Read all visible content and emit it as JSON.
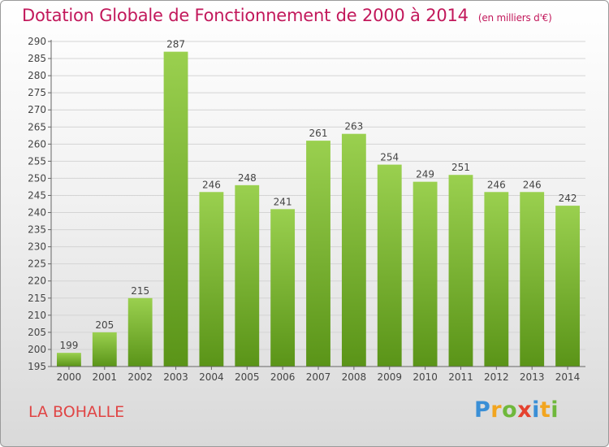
{
  "header": {
    "title": "Dotation Globale de Fonctionnement de 2000 à 2014",
    "subtitle": "(en milliers d'€)"
  },
  "footer": {
    "commune": "LA BOHALLE",
    "logo_text": "Proxiti"
  },
  "colors": {
    "title": "#c2185b",
    "commune": "#e04545",
    "bar_top": "#9ad04f",
    "bar_bottom": "#5a9418"
  },
  "chart_data": {
    "type": "bar",
    "title": "Dotation Globale de Fonctionnement de 2000 à 2014",
    "subtitle": "(en milliers d'€)",
    "xlabel": "",
    "ylabel": "",
    "categories": [
      "2000",
      "2001",
      "2002",
      "2003",
      "2004",
      "2005",
      "2006",
      "2007",
      "2008",
      "2009",
      "2010",
      "2011",
      "2012",
      "2013",
      "2014"
    ],
    "values": [
      199,
      205,
      215,
      287,
      246,
      248,
      241,
      261,
      263,
      254,
      249,
      251,
      246,
      246,
      242
    ],
    "ylim": [
      195,
      290
    ],
    "ytick_step": 5,
    "grid": true,
    "legend": "none"
  }
}
